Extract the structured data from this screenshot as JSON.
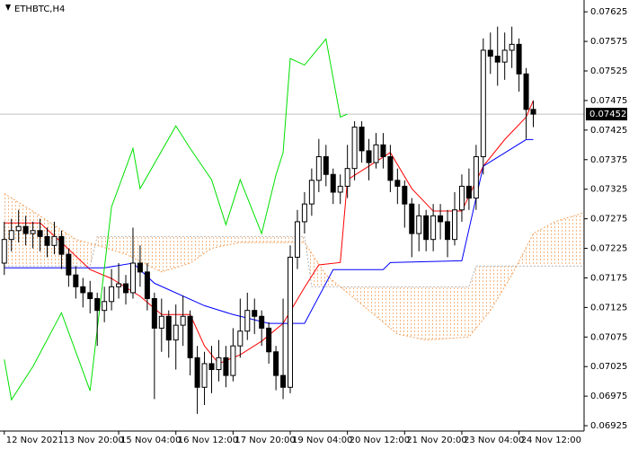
{
  "chart_data": {
    "type": "candlestick",
    "title": "ETHBTC,H4",
    "xlim": [
      -0.6,
      81.1
    ],
    "ylim": [
      0.06916,
      0.07645
    ],
    "yticks": [
      0.07625,
      0.07575,
      0.07525,
      0.07475,
      0.07425,
      0.07375,
      0.07325,
      0.07275,
      0.07225,
      0.07175,
      0.07125,
      0.07075,
      0.07025,
      0.06975,
      0.06925
    ],
    "xticks": [
      {
        "value": 0,
        "label": "12 Nov 2021"
      },
      {
        "value": 8,
        "label": "13 Nov 20:00"
      },
      {
        "value": 16,
        "label": "15 Nov 04:00"
      },
      {
        "value": 24,
        "label": "16 Nov 12:00"
      },
      {
        "value": 32,
        "label": "17 Nov 20:00"
      },
      {
        "value": 40,
        "label": "19 Nov 04:00"
      },
      {
        "value": 48,
        "label": "20 Nov 12:00"
      },
      {
        "value": 56,
        "label": "21 Nov 20:00"
      },
      {
        "value": 64,
        "label": "23 Nov 04:00"
      },
      {
        "value": 72,
        "label": "24 Nov 12:00"
      }
    ],
    "last_price": 0.07452,
    "up_color": "#ffffff",
    "down_color": "#000000",
    "open": [
      0.072,
      0.0724,
      0.07255,
      0.07262,
      0.0725,
      0.07255,
      0.07245,
      0.0723,
      0.07245,
      0.07215,
      0.0718,
      0.0716,
      0.0715,
      0.0714,
      0.0712,
      0.07135,
      0.0716,
      0.07165,
      0.0715,
      0.072,
      0.07185,
      0.0714,
      0.0709,
      0.0711,
      0.0707,
      0.07095,
      0.0711,
      0.0704,
      0.0699,
      0.0703,
      0.0702,
      0.0704,
      0.0701,
      0.0706,
      0.07085,
      0.0712,
      0.0711,
      0.0709,
      0.0705,
      0.0701,
      0.0699,
      0.0721,
      0.0727,
      0.073,
      0.0734,
      0.0738,
      0.0735,
      0.0732,
      0.0733,
      0.0736,
      0.0743,
      0.0739,
      0.0737,
      0.074,
      0.0738,
      0.0734,
      0.0733,
      0.073,
      0.0725,
      0.0728,
      0.0724,
      0.0728,
      0.0727,
      0.0724,
      0.0729,
      0.0733,
      0.0731,
      0.0738,
      0.0756,
      0.0755,
      0.0754,
      0.0756,
      0.0757,
      0.0752,
      0.0746
    ],
    "high": [
      0.0727,
      0.07275,
      0.0729,
      0.0728,
      0.0727,
      0.07275,
      0.0726,
      0.0727,
      0.07255,
      0.07225,
      0.07195,
      0.07175,
      0.0717,
      0.0715,
      0.0716,
      0.0719,
      0.072,
      0.0718,
      0.0726,
      0.0723,
      0.072,
      0.0715,
      0.0714,
      0.0712,
      0.0713,
      0.07145,
      0.0712,
      0.0706,
      0.0705,
      0.0706,
      0.0707,
      0.0706,
      0.0709,
      0.0714,
      0.0715,
      0.0714,
      0.0712,
      0.071,
      0.0706,
      0.0714,
      0.0723,
      0.0729,
      0.0732,
      0.0736,
      0.0741,
      0.074,
      0.0736,
      0.0735,
      0.074,
      0.0744,
      0.0744,
      0.0741,
      0.0742,
      0.0742,
      0.074,
      0.0736,
      0.0734,
      0.0731,
      0.073,
      0.0729,
      0.073,
      0.073,
      0.0729,
      0.0732,
      0.0735,
      0.0736,
      0.074,
      0.0758,
      0.0759,
      0.076,
      0.0759,
      0.076,
      0.0758,
      0.0753,
      0.07475
    ],
    "low": [
      0.0718,
      0.0722,
      0.07235,
      0.0723,
      0.07225,
      0.0722,
      0.0721,
      0.07215,
      0.0719,
      0.0716,
      0.0714,
      0.07125,
      0.07115,
      0.0706,
      0.071,
      0.0712,
      0.0714,
      0.0713,
      0.0714,
      0.0716,
      0.0712,
      0.0697,
      0.0705,
      0.0704,
      0.0702,
      0.0706,
      0.0701,
      0.06945,
      0.0696,
      0.0698,
      0.07,
      0.0699,
      0.07,
      0.0704,
      0.0707,
      0.0708,
      0.0706,
      0.0703,
      0.06985,
      0.0697,
      0.0698,
      0.0719,
      0.0725,
      0.0728,
      0.0732,
      0.0733,
      0.073,
      0.073,
      0.0731,
      0.0734,
      0.0737,
      0.0734,
      0.0736,
      0.0736,
      0.0732,
      0.073,
      0.0726,
      0.0721,
      0.0722,
      0.0722,
      0.0722,
      0.0724,
      0.0721,
      0.0723,
      0.0727,
      0.0729,
      0.0729,
      0.0735,
      0.0752,
      0.075,
      0.0751,
      0.0753,
      0.0749,
      0.0741,
      0.0743
    ],
    "close": [
      0.0724,
      0.07255,
      0.07262,
      0.0725,
      0.07255,
      0.07245,
      0.0723,
      0.07245,
      0.07215,
      0.0718,
      0.0716,
      0.0715,
      0.0714,
      0.0712,
      0.07135,
      0.0716,
      0.07165,
      0.0715,
      0.072,
      0.07185,
      0.0714,
      0.0709,
      0.0711,
      0.0707,
      0.07095,
      0.0711,
      0.0704,
      0.0699,
      0.0703,
      0.0702,
      0.0704,
      0.0701,
      0.0706,
      0.07085,
      0.0712,
      0.0711,
      0.0709,
      0.0705,
      0.0701,
      0.0699,
      0.0721,
      0.0727,
      0.073,
      0.0734,
      0.0738,
      0.0735,
      0.0732,
      0.0733,
      0.0736,
      0.0743,
      0.0739,
      0.0737,
      0.074,
      0.0738,
      0.0734,
      0.0733,
      0.073,
      0.0725,
      0.0728,
      0.0724,
      0.0728,
      0.0727,
      0.0724,
      0.0729,
      0.0733,
      0.0731,
      0.0738,
      0.0756,
      0.0755,
      0.0754,
      0.0756,
      0.0757,
      0.0752,
      0.0746,
      0.07452
    ],
    "series": [
      {
        "color": "#ff0000",
        "x": [
          0,
          5,
          8,
          12,
          15,
          19,
          22,
          26,
          28,
          30,
          33,
          36,
          39,
          42,
          44,
          47,
          48,
          54,
          57,
          60,
          64,
          67,
          70,
          73,
          74
        ],
        "values": [
          0.07268,
          0.07268,
          0.07235,
          0.07189,
          0.07174,
          0.07144,
          0.07113,
          0.07113,
          0.0706,
          0.0703,
          0.07045,
          0.07068,
          0.07098,
          0.07159,
          0.07197,
          0.07201,
          0.07341,
          0.07387,
          0.07326,
          0.07288,
          0.07288,
          0.07364,
          0.07409,
          0.07447,
          0.07475
        ]
      },
      {
        "color": "#0000ff",
        "x": [
          0,
          14,
          18,
          21,
          28,
          32,
          37,
          42,
          46,
          53,
          54,
          64,
          67,
          73,
          74
        ],
        "values": [
          0.07192,
          0.07192,
          0.072,
          0.07166,
          0.07128,
          0.07113,
          0.07098,
          0.07098,
          0.07189,
          0.07189,
          0.07201,
          0.07204,
          0.07364,
          0.07409,
          0.07409
        ]
      },
      {
        "color": "#00e000",
        "x": [
          0,
          1,
          4,
          8,
          12,
          15,
          18,
          19,
          24,
          26,
          29,
          31,
          33,
          36,
          38,
          39,
          40,
          42,
          45,
          47,
          48
        ],
        "values": [
          0.07037,
          0.06969,
          0.07025,
          0.07116,
          0.06984,
          0.07295,
          0.07394,
          0.07326,
          0.07432,
          0.07394,
          0.07341,
          0.07265,
          0.07341,
          0.0725,
          0.07349,
          0.07387,
          0.07546,
          0.07535,
          0.07579,
          0.07447,
          0.07452
        ]
      }
    ],
    "cloud": {
      "color_a": "#f4a460",
      "color_b": "#b4b4b4",
      "span_a": {
        "x": [
          0,
          5,
          10,
          13,
          17,
          22,
          26,
          29,
          33,
          42,
          45,
          50,
          55,
          59,
          65,
          68,
          71,
          74,
          77,
          81
        ],
        "values": [
          0.07318,
          0.0728,
          0.0724,
          0.0723,
          0.07215,
          0.07185,
          0.072,
          0.07225,
          0.07235,
          0.07235,
          0.0718,
          0.0713,
          0.0708,
          0.0707,
          0.07075,
          0.0712,
          0.0718,
          0.0725,
          0.0727,
          0.07285
        ]
      },
      "span_b": {
        "x": [
          0,
          12,
          13,
          42,
          43,
          65,
          66,
          81
        ],
        "values": [
          0.07195,
          0.07195,
          0.07245,
          0.07245,
          0.0716,
          0.0716,
          0.07195,
          0.07195
        ]
      }
    }
  }
}
